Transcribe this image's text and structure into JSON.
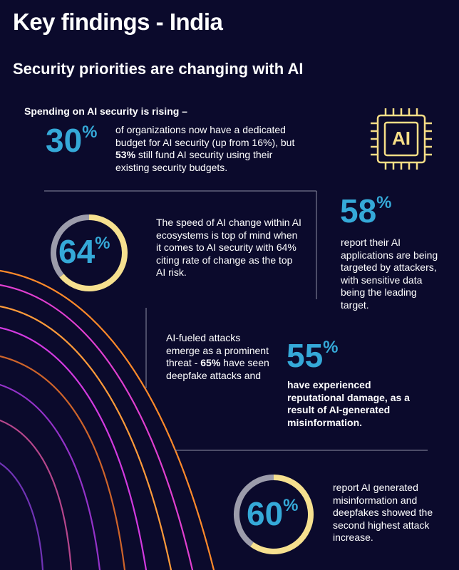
{
  "header": {
    "title": "Key findings - India",
    "subtitle": "Security priorities are changing with AI"
  },
  "spending": {
    "lead": "Spending on AI security is rising –",
    "value": 30,
    "unit": "%",
    "icon": "AI",
    "body": [
      {
        "text": "of organizations now have a dedicated budget for AI security (up from 16%), but "
      },
      {
        "text": "53%",
        "bold": true
      },
      {
        "text": " still fund AI security using their existing security budgets."
      }
    ]
  },
  "change": {
    "value": 64,
    "unit": "%",
    "body": [
      {
        "text": "The speed of AI change within AI ecosystems is top of mind when it comes to AI security with 64% citing rate of change as the top AI risk."
      }
    ]
  },
  "targeted": {
    "value": 58,
    "unit": "%",
    "body": [
      {
        "text": "report their AI applications are being targeted by attackers, with sensitive data being the leading target."
      }
    ]
  },
  "deepfake": {
    "intro": [
      {
        "text": "AI-fueled attacks emerge as a prominent threat - "
      },
      {
        "text": "65%",
        "bold": true
      },
      {
        "text": " have seen deepfake attacks and"
      }
    ],
    "value": 55,
    "unit": "%",
    "body": [
      {
        "text": "have experienced reputational damage, as a result of AI-generated misinformation.",
        "bold": true
      }
    ]
  },
  "misinformation": {
    "value": 60,
    "unit": "%",
    "body": [
      {
        "text": "report AI generated misinformation and deepfakes showed the second highest attack increase."
      }
    ]
  }
}
